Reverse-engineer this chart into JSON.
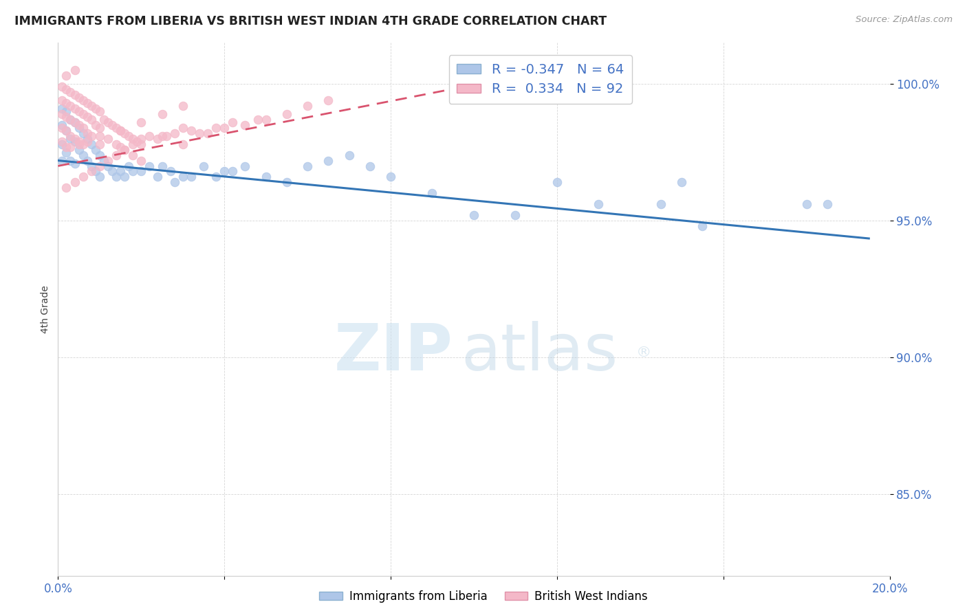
{
  "title": "IMMIGRANTS FROM LIBERIA VS BRITISH WEST INDIAN 4TH GRADE CORRELATION CHART",
  "source": "Source: ZipAtlas.com",
  "ylabel": "4th Grade",
  "xlim": [
    0.0,
    0.2
  ],
  "ylim": [
    0.82,
    1.015
  ],
  "yticks": [
    0.85,
    0.9,
    0.95,
    1.0
  ],
  "ytick_labels": [
    "85.0%",
    "90.0%",
    "95.0%",
    "100.0%"
  ],
  "xticks": [
    0.0,
    0.04,
    0.08,
    0.12,
    0.16,
    0.2
  ],
  "xtick_labels": [
    "0.0%",
    "",
    "",
    "",
    "",
    "20.0%"
  ],
  "legend_label1": "R = -0.347   N = 64",
  "legend_label2": "R =  0.334   N = 92",
  "color_blue": "#aec6e8",
  "color_pink": "#f4b8c8",
  "color_blue_line": "#3375b5",
  "color_pink_line": "#d9536e",
  "color_axis_text": "#4472c4",
  "color_grid": "#cccccc",
  "blue_line_x": [
    0.0,
    0.195
  ],
  "blue_line_y": [
    0.972,
    0.9435
  ],
  "pink_line_x": [
    0.0,
    0.118
  ],
  "pink_line_y": [
    0.97,
    1.005
  ],
  "blue_points_x": [
    0.001,
    0.001,
    0.001,
    0.001,
    0.002,
    0.002,
    0.002,
    0.003,
    0.003,
    0.003,
    0.004,
    0.004,
    0.004,
    0.005,
    0.005,
    0.006,
    0.006,
    0.007,
    0.007,
    0.008,
    0.008,
    0.009,
    0.009,
    0.01,
    0.01,
    0.011,
    0.012,
    0.013,
    0.014,
    0.015,
    0.016,
    0.017,
    0.018,
    0.02,
    0.022,
    0.024,
    0.025,
    0.027,
    0.028,
    0.03,
    0.032,
    0.035,
    0.038,
    0.04,
    0.042,
    0.045,
    0.05,
    0.055,
    0.06,
    0.065,
    0.07,
    0.075,
    0.08,
    0.09,
    0.1,
    0.11,
    0.12,
    0.13,
    0.145,
    0.155,
    0.18,
    0.185,
    0.13,
    0.15
  ],
  "blue_points_y": [
    0.991,
    0.985,
    0.978,
    0.972,
    0.99,
    0.983,
    0.975,
    0.987,
    0.98,
    0.972,
    0.986,
    0.979,
    0.971,
    0.984,
    0.976,
    0.982,
    0.974,
    0.98,
    0.972,
    0.978,
    0.97,
    0.976,
    0.968,
    0.974,
    0.966,
    0.972,
    0.97,
    0.968,
    0.966,
    0.968,
    0.966,
    0.97,
    0.968,
    0.968,
    0.97,
    0.966,
    0.97,
    0.968,
    0.964,
    0.966,
    0.966,
    0.97,
    0.966,
    0.968,
    0.968,
    0.97,
    0.966,
    0.964,
    0.97,
    0.972,
    0.974,
    0.97,
    0.966,
    0.96,
    0.952,
    0.952,
    0.964,
    0.956,
    0.956,
    0.948,
    0.956,
    0.956,
    1.0,
    0.964
  ],
  "pink_points_x": [
    0.001,
    0.001,
    0.001,
    0.001,
    0.001,
    0.002,
    0.002,
    0.002,
    0.002,
    0.002,
    0.003,
    0.003,
    0.003,
    0.003,
    0.004,
    0.004,
    0.004,
    0.004,
    0.005,
    0.005,
    0.005,
    0.005,
    0.006,
    0.006,
    0.006,
    0.006,
    0.007,
    0.007,
    0.007,
    0.008,
    0.008,
    0.008,
    0.009,
    0.009,
    0.01,
    0.01,
    0.01,
    0.011,
    0.012,
    0.012,
    0.013,
    0.014,
    0.014,
    0.015,
    0.015,
    0.016,
    0.016,
    0.017,
    0.018,
    0.018,
    0.019,
    0.02,
    0.02,
    0.022,
    0.024,
    0.025,
    0.026,
    0.028,
    0.03,
    0.03,
    0.032,
    0.034,
    0.036,
    0.038,
    0.04,
    0.042,
    0.045,
    0.048,
    0.05,
    0.055,
    0.06,
    0.065,
    0.003,
    0.005,
    0.007,
    0.01,
    0.015,
    0.02,
    0.025,
    0.03,
    0.002,
    0.004,
    0.006,
    0.008,
    0.01,
    0.012,
    0.014,
    0.016,
    0.018,
    0.02,
    0.002,
    0.004
  ],
  "pink_points_y": [
    0.999,
    0.994,
    0.989,
    0.984,
    0.979,
    0.998,
    0.993,
    0.988,
    0.983,
    0.977,
    0.997,
    0.992,
    0.987,
    0.981,
    0.996,
    0.991,
    0.986,
    0.98,
    0.995,
    0.99,
    0.985,
    0.979,
    0.994,
    0.989,
    0.984,
    0.978,
    0.993,
    0.988,
    0.982,
    0.992,
    0.987,
    0.981,
    0.991,
    0.985,
    0.99,
    0.984,
    0.978,
    0.987,
    0.986,
    0.98,
    0.985,
    0.984,
    0.978,
    0.983,
    0.977,
    0.982,
    0.976,
    0.981,
    0.98,
    0.974,
    0.979,
    0.978,
    0.972,
    0.981,
    0.98,
    0.981,
    0.981,
    0.982,
    0.984,
    0.978,
    0.983,
    0.982,
    0.982,
    0.984,
    0.984,
    0.986,
    0.985,
    0.987,
    0.987,
    0.989,
    0.992,
    0.994,
    0.977,
    0.978,
    0.979,
    0.981,
    0.983,
    0.986,
    0.989,
    0.992,
    0.962,
    0.964,
    0.966,
    0.968,
    0.97,
    0.972,
    0.974,
    0.976,
    0.978,
    0.98,
    1.003,
    1.005
  ]
}
